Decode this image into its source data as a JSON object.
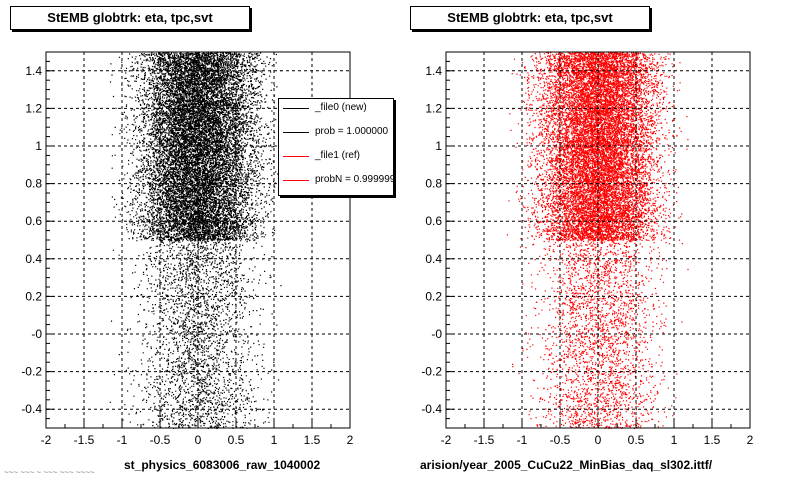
{
  "chart_data": [
    {
      "type": "scatter",
      "title": "StEMB globtrk: eta, tpc,svt",
      "xlabel": "st_physics_6083006_raw_1040002",
      "ylabel": "",
      "xlim": [
        -2,
        2
      ],
      "ylim": [
        -0.5,
        1.5
      ],
      "xticks": [
        "-2",
        "-1.5",
        "-1",
        "-0.5",
        "0",
        "0.5",
        "1",
        "1.5",
        "2"
      ],
      "yticks": [
        "-0.4",
        "-0.2",
        "-0",
        "0.2",
        "0.4",
        "0.6",
        "0.8",
        "1",
        "1.2",
        "1.4"
      ],
      "grid": true,
      "marker_color": "#000000",
      "distribution": {
        "dense_region": {
          "x": [
            -2,
            1.5
          ],
          "y": [
            0.5,
            1.5
          ]
        },
        "sparse_region": {
          "x": [
            -2,
            1.5
          ],
          "y": [
            -0.5,
            0.5
          ]
        }
      },
      "legend": {
        "placement": "top-right",
        "entries": [
          {
            "label": "_file0 (new)",
            "color": "#000000"
          },
          {
            "label": "prob = 1.000000",
            "color": "#000000"
          },
          {
            "label": "_file1 (ref)",
            "color": "#ff0000"
          },
          {
            "label": "probN = 0.999999",
            "color": "#ff0000"
          }
        ]
      }
    },
    {
      "type": "scatter",
      "title": "StEMB globtrk: eta, tpc,svt",
      "xlabel": "arision/year_2005_CuCu22_MinBias_daq_sl302.ittf/",
      "ylabel": "",
      "xlim": [
        -2,
        2
      ],
      "ylim": [
        -0.5,
        1.5
      ],
      "xticks": [
        "-2",
        "-1.5",
        "-1",
        "-0.5",
        "0",
        "0.5",
        "1",
        "1.5",
        "2"
      ],
      "yticks": [
        "-0.4",
        "-0.2",
        "-0",
        "0.2",
        "0.4",
        "0.6",
        "0.8",
        "1",
        "1.2",
        "1.4"
      ],
      "grid": true,
      "marker_color": "#ff0000",
      "distribution": {
        "dense_region": {
          "x": [
            -2,
            1.5
          ],
          "y": [
            0.5,
            1.5
          ]
        },
        "sparse_region": {
          "x": [
            -2,
            1.5
          ],
          "y": [
            -0.5,
            0.5
          ]
        }
      }
    }
  ],
  "footer_note": "~~~ ~~~ ~ ~~~ ~~~ ~~~~"
}
